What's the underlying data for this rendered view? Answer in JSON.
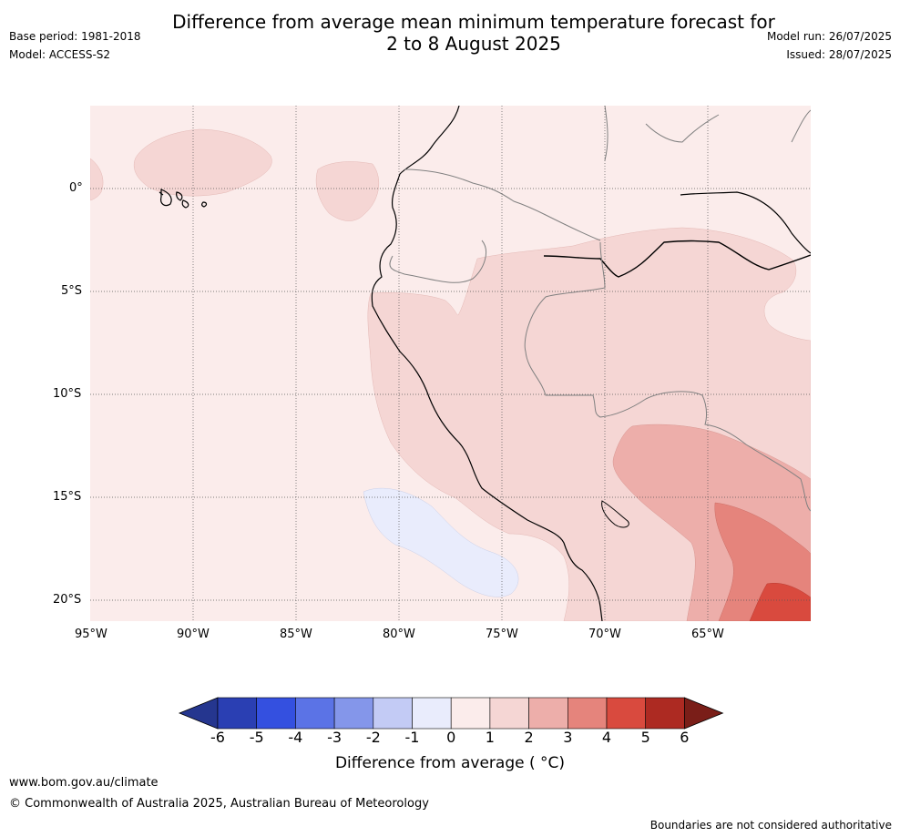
{
  "title_line1": "Difference from average mean minimum temperature forecast for",
  "title_line2": "2 to 8 August 2025",
  "meta": {
    "base_period": "Base period: 1981-2018",
    "model": "Model: ACCESS-S2",
    "model_run": "Model run: 26/07/2025",
    "issued": "Issued: 28/07/2025"
  },
  "map": {
    "lat_labels": [
      "0°",
      "5°S",
      "10°S",
      "15°S",
      "20°S"
    ],
    "lon_labels": [
      "95°W",
      "90°W",
      "85°W",
      "80°W",
      "75°W",
      "70°W",
      "65°W"
    ],
    "lon_range": [
      -95,
      -60
    ],
    "lat_range": [
      -21,
      4
    ]
  },
  "colorbar": {
    "ticks": [
      "-6",
      "-5",
      "-4",
      "-3",
      "-2",
      "-1",
      "0",
      "1",
      "2",
      "3",
      "4",
      "5",
      "6"
    ],
    "colors": [
      "#25368f",
      "#2a3fb3",
      "#3450e0",
      "#5b73e6",
      "#8496ea",
      "#c3cbf5",
      "#e9ecfc",
      "#fbeceb",
      "#f5d6d4",
      "#edaeaa",
      "#e5847c",
      "#d94a3e",
      "#ad2a22",
      "#7a1e18"
    ],
    "title": "Difference from average ( °C)"
  },
  "footer": {
    "url": "www.bom.gov.au/climate",
    "copyright": "© Commonwealth of Australia 2025, Australian Bureau of Meteorology",
    "disclaimer": "Boundaries are not considered authoritative"
  }
}
